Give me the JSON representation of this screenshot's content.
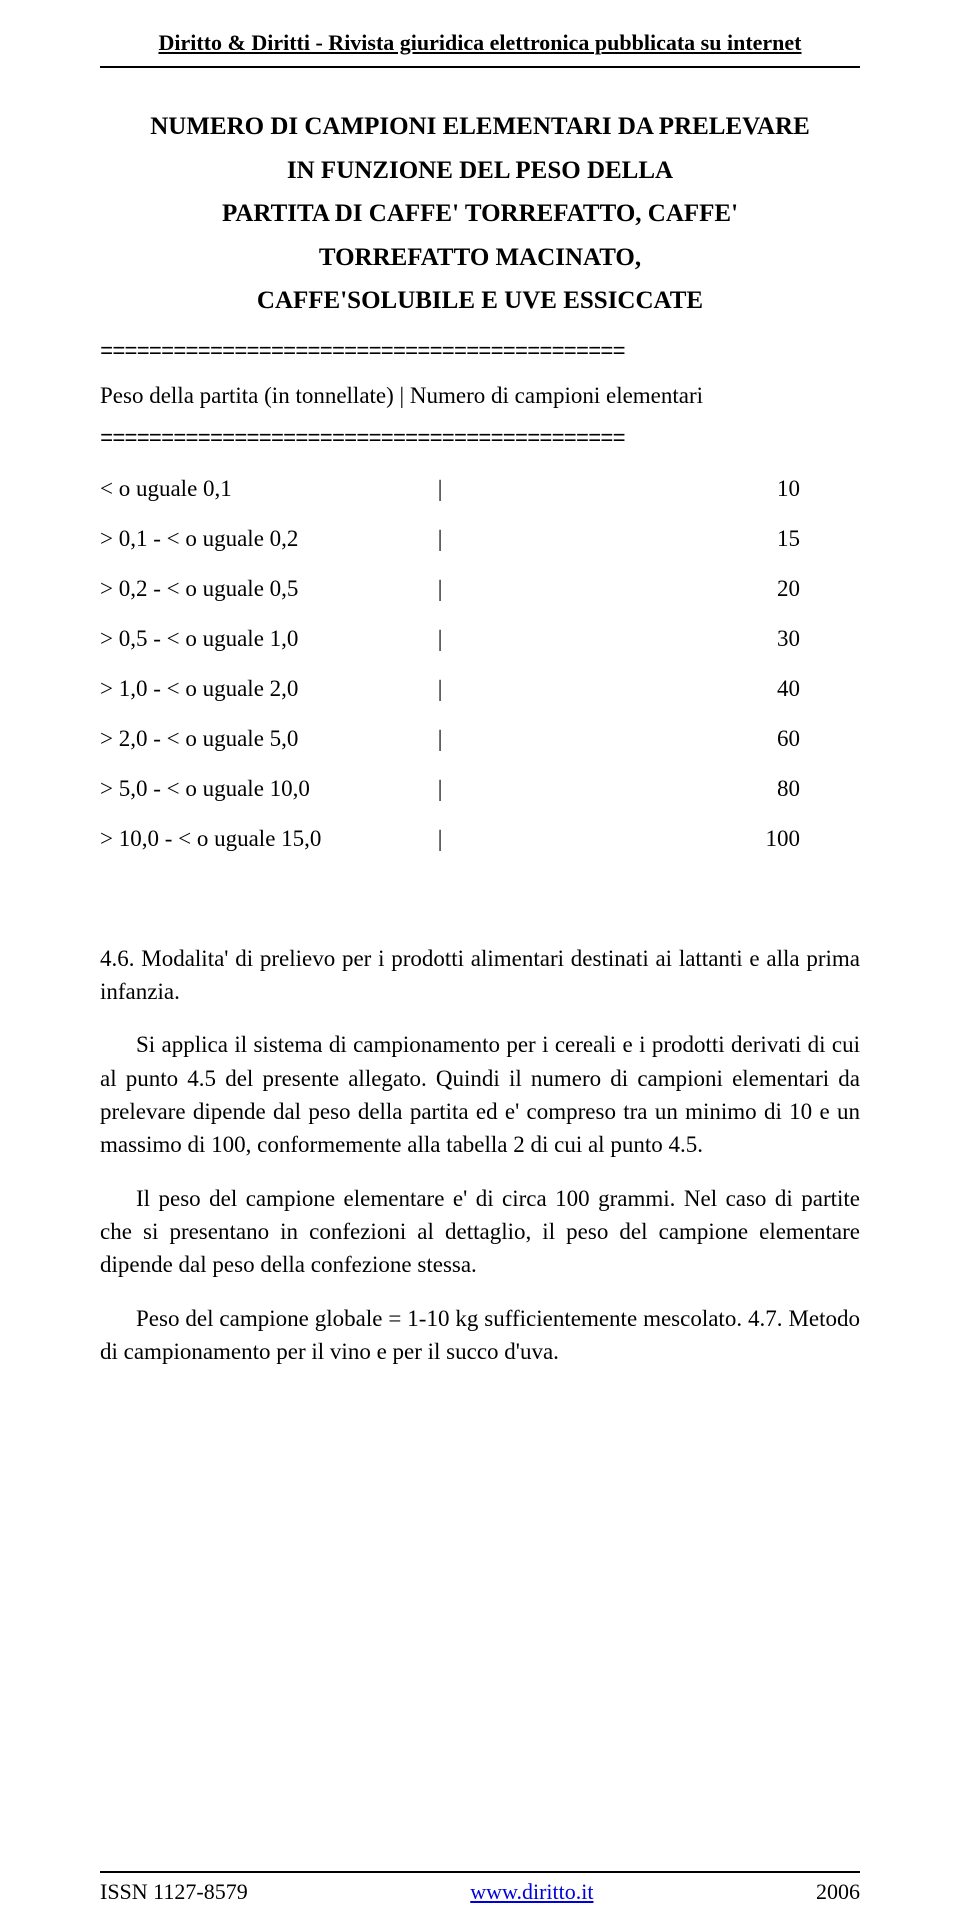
{
  "header": {
    "title": "Diritto & Diritti - Rivista giuridica elettronica pubblicata su internet"
  },
  "document": {
    "title_line1": "NUMERO DI CAMPIONI ELEMENTARI DA PRELEVARE",
    "title_line2": "IN FUNZIONE DEL PESO DELLA",
    "title_line3": "PARTITA DI CAFFE' TORREFATTO, CAFFE'",
    "title_line4": "TORREFATTO MACINATO,",
    "title_line5": "CAFFE'SOLUBILE E UVE ESSICCATE",
    "separator": "===========================================",
    "table_header": "Peso della partita (in tonnellate) | Numero di campioni elementari",
    "rows": [
      {
        "label": "< o uguale 0,1",
        "pipe": "|",
        "value": "10"
      },
      {
        "label": "> 0,1 - < o uguale 0,2",
        "pipe": "|",
        "value": "15"
      },
      {
        "label": "> 0,2 - < o uguale 0,5",
        "pipe": "|",
        "value": "20"
      },
      {
        "label": "> 0,5 - < o uguale 1,0",
        "pipe": "|",
        "value": "30"
      },
      {
        "label": "> 1,0 - < o uguale 2,0",
        "pipe": "|",
        "value": "40"
      },
      {
        "label": "> 2,0 - < o uguale 5,0",
        "pipe": "|",
        "value": "60"
      },
      {
        "label": "> 5,0 - < o uguale 10,0",
        "pipe": "|",
        "value": "80"
      },
      {
        "label": "> 10,0 - < o uguale 15,0",
        "pipe": "|",
        "value": "100"
      }
    ],
    "section_heading": "4.6. Modalita' di  prelievo  per i prodotti alimentari destinati ai lattanti e alla prima infanzia.",
    "para1": "Si applica il sistema di campionamento per i cereali e i prodotti derivati  di cui al punto 4.5 del presente allegato. Quindi il numero di campioni elementari da prelevare dipende dal peso della partita ed e' compreso  tra  un minimo di 10 e un massimo di 100, conformemente alla tabella 2 di cui al punto 4.5.",
    "para2": "Il  peso del campione elementare e' di circa 100 grammi. Nel caso di partite che si presentano in confezioni al dettaglio, il peso del campione elementare dipende dal peso della confezione stessa.",
    "para3": "Peso del campione globale = 1-10 kg sufficientemente mescolato. 4.7. Metodo di campionamento per il vino e per il succo d'uva."
  },
  "footer": {
    "issn": "ISSN 1127-8579",
    "url": "www.diritto.it",
    "year": "2006"
  }
}
